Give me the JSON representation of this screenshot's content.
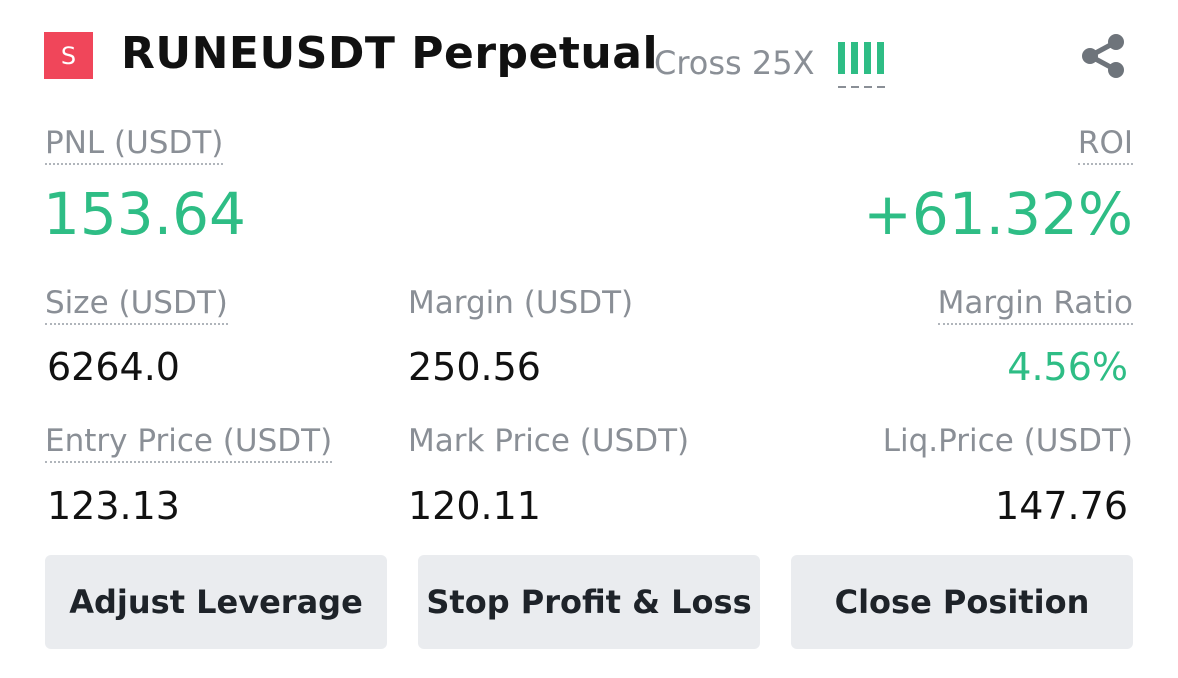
{
  "header": {
    "side_badge": "S",
    "symbol": "RUNEUSDT  Perpetual",
    "margin_mode": "Cross 25X",
    "risk_level": 4,
    "share_icon": "share-icon"
  },
  "pnl": {
    "label": "PNL (USDT)",
    "value": "153.64"
  },
  "roi": {
    "label": "ROI",
    "value": "+61.32%"
  },
  "size": {
    "label": "Size (USDT)",
    "value": "6264.0"
  },
  "margin": {
    "label": "Margin (USDT)",
    "value": "250.56"
  },
  "margin_ratio": {
    "label": "Margin Ratio",
    "value": "4.56%"
  },
  "entry_price": {
    "label": "Entry Price (USDT)",
    "value": "123.13"
  },
  "mark_price": {
    "label": "Mark Price (USDT)",
    "value": "120.11"
  },
  "liq_price": {
    "label": "Liq.Price (USDT)",
    "value": "147.76"
  },
  "buttons": {
    "adjust_leverage": "Adjust Leverage",
    "stop_profit_loss": "Stop Profit & Loss",
    "close_position": "Close Position"
  },
  "colors": {
    "profit_green": "#2ebd85",
    "short_red": "#f0465a",
    "muted_text": "#8a8f96",
    "button_bg": "#eaecef"
  }
}
